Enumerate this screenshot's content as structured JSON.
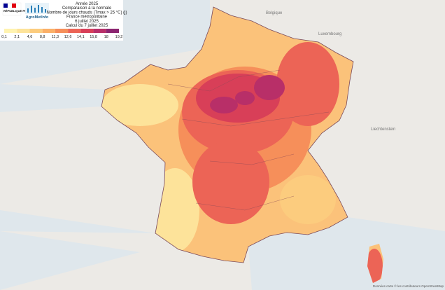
{
  "header": {
    "lines": [
      "Année 2025",
      "Comparaison à la normale",
      "Nombre de jours chauds (Tmax > 25 °C) (j)",
      "France métropolitaine",
      "6 juillet 2025",
      "Calcul du 7 juillet 2025"
    ],
    "logo": {
      "republic": "RÉPUBLIQUE FRANÇAISE",
      "brand": "AgroMetInfo"
    }
  },
  "legend": {
    "labels": [
      "0,1",
      "2,1",
      "4,6",
      "8,8",
      "11,3",
      "12,6",
      "14,1",
      "15,8",
      "18",
      "19,2"
    ],
    "colors": [
      "#fff3b0",
      "#fde39a",
      "#fccc7e",
      "#fbb068",
      "#f68f5a",
      "#ec6456",
      "#d83f58",
      "#b82f68",
      "#8b2470"
    ]
  },
  "places": [
    "Belgique",
    "Luxembourg",
    "Liechtenstein"
  ],
  "attribution": "Données carte © les contributeurs OpenStreetMap"
}
